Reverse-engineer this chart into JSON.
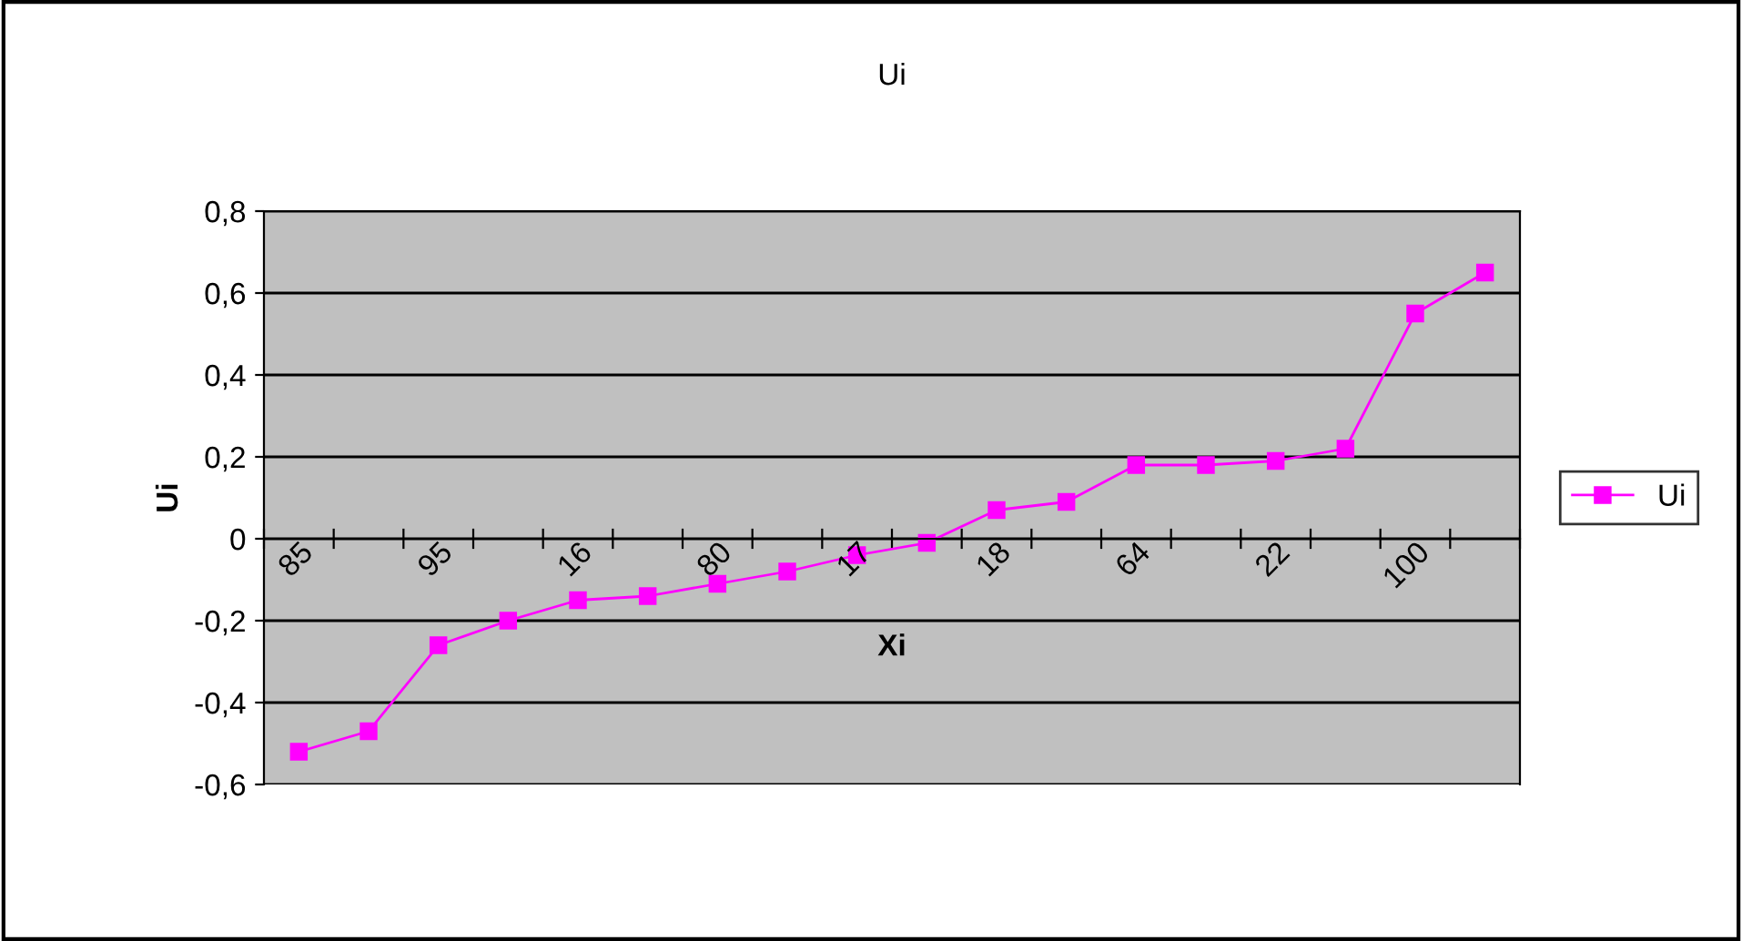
{
  "chart_data": {
    "type": "line",
    "title": "Ui",
    "xlabel": "Xi",
    "ylabel": "Ui",
    "categories": [
      "85",
      null,
      "95",
      null,
      "16",
      null,
      "80",
      null,
      "17",
      null,
      "18",
      null,
      "64",
      null,
      "22",
      null,
      "100",
      null
    ],
    "series": [
      {
        "name": "Ui",
        "color": "#ff00ff",
        "values": [
          -0.52,
          -0.47,
          -0.26,
          -0.2,
          -0.15,
          -0.14,
          -0.11,
          -0.08,
          -0.04,
          -0.01,
          0.07,
          0.09,
          0.18,
          0.18,
          0.19,
          0.22,
          0.55,
          0.65
        ]
      }
    ],
    "ylim": [
      -0.6,
      0.8
    ],
    "yticks": [
      {
        "value": -0.6,
        "label": "-0,6"
      },
      {
        "value": -0.4,
        "label": "-0,4"
      },
      {
        "value": -0.2,
        "label": "-0,2"
      },
      0,
      {
        "value": 0.2,
        "label": "0,2"
      },
      {
        "value": 0.4,
        "label": "0,4"
      },
      {
        "value": 0.6,
        "label": "0,6"
      },
      {
        "value": 0.8,
        "label": "0,8"
      }
    ],
    "grid": "y",
    "legend": "right",
    "marker": "square",
    "line_style": "solid"
  }
}
